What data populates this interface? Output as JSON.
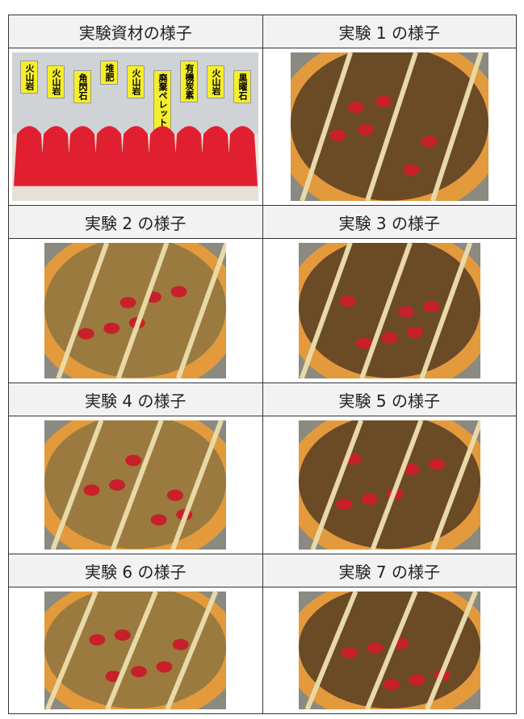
{
  "table": {
    "rows": [
      [
        "実験資材の様子",
        "実験 1 の様子"
      ],
      [
        "実験 2 の様子",
        "実験 3 の様子"
      ],
      [
        "実験 4 の様子",
        "実験 5 の様子"
      ],
      [
        "実験 6 の様子",
        "実験 7 の様子"
      ]
    ]
  },
  "photo_labels": [
    "火山岩",
    "火山岩",
    "角閃石",
    "堆肥",
    "火山岩",
    "廃棄ペレット",
    "有機炭素",
    "火山岩",
    "黒曜石"
  ]
}
